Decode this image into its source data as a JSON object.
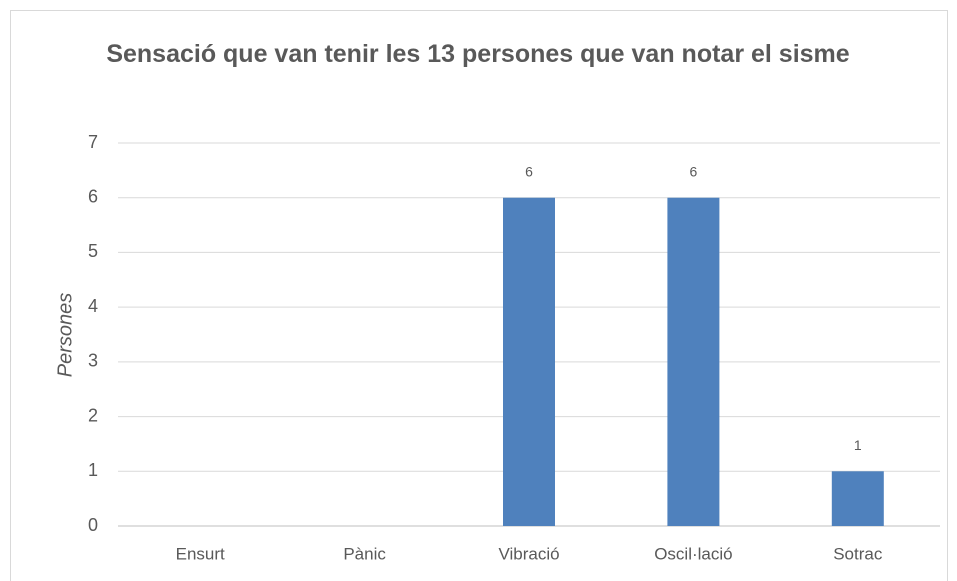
{
  "chart_data": {
    "type": "bar",
    "title": "Sensació que van tenir les 13 persones que van notar el sisme",
    "ylabel": "Persones",
    "categories": [
      "Ensurt",
      "Pànic",
      "Vibració",
      "Oscil·lació",
      "Sotrac"
    ],
    "values": [
      0,
      0,
      6,
      6,
      1
    ],
    "value_labels": [
      null,
      null,
      "6",
      "6",
      "1"
    ],
    "color": "#4f81bd",
    "ylim": [
      0,
      7
    ],
    "yticks": [
      0,
      1,
      2,
      3,
      4,
      5,
      6,
      7
    ],
    "grid": true
  }
}
